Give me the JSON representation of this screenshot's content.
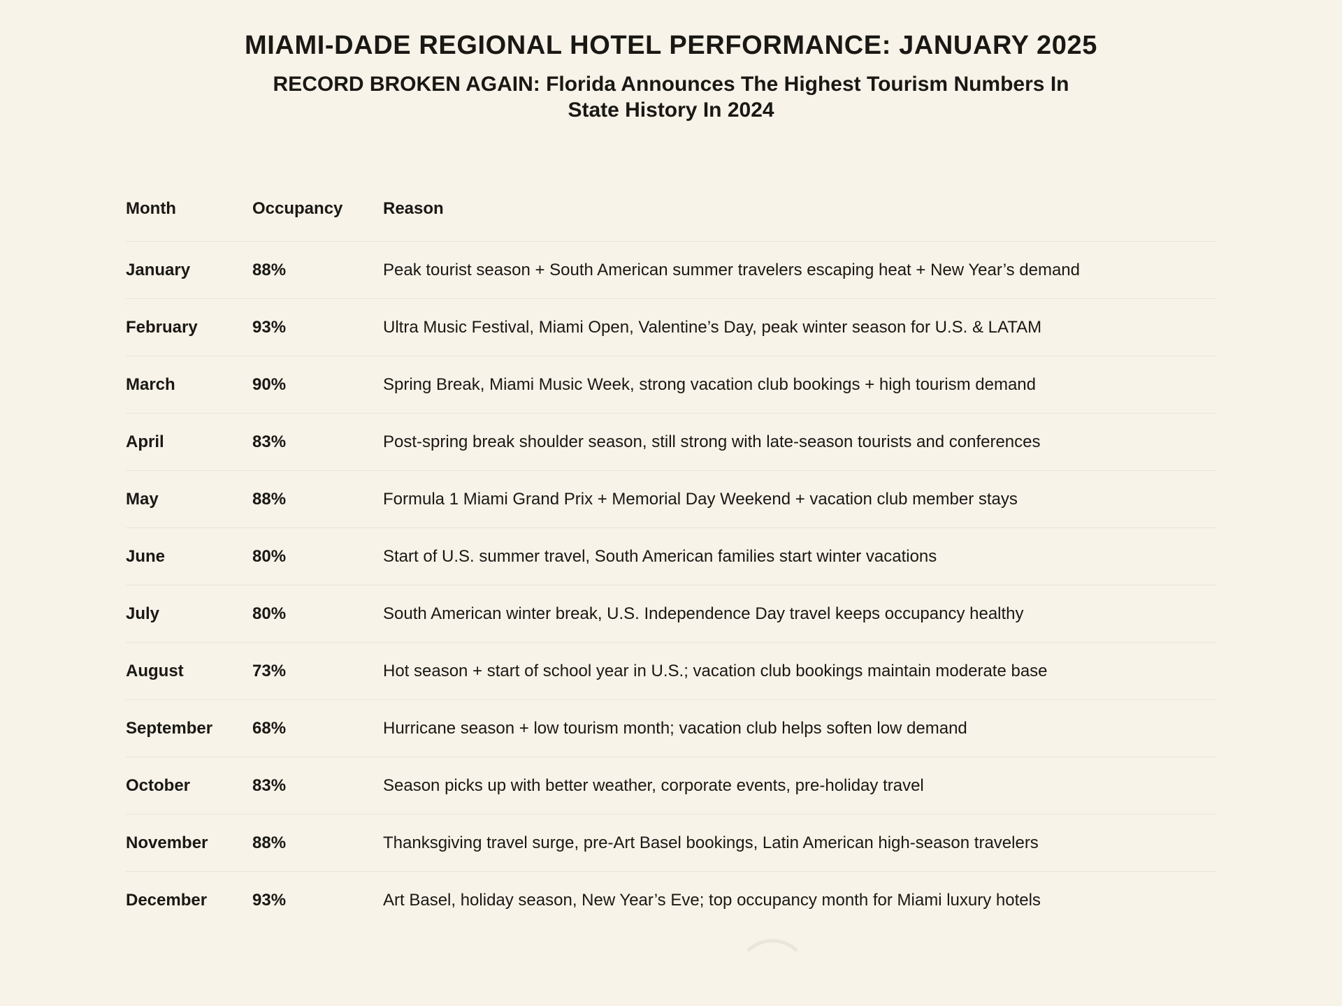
{
  "header": {
    "title": "MIAMI-DADE REGIONAL HOTEL PERFORMANCE: JANUARY 2025",
    "subtitle": "RECORD BROKEN AGAIN: Florida Announces The Highest Tourism Numbers In State History In 2024"
  },
  "table": {
    "columns": [
      "Month",
      "Occupancy",
      "Reason"
    ],
    "rows": [
      {
        "month": "January",
        "occupancy": "88%",
        "reason": "Peak tourist season + South American summer travelers escaping heat + New Year’s demand"
      },
      {
        "month": "February",
        "occupancy": "93%",
        "reason": "Ultra Music Festival, Miami Open, Valentine’s Day, peak winter season for U.S. & LATAM"
      },
      {
        "month": "March",
        "occupancy": "90%",
        "reason": "Spring Break, Miami Music Week, strong vacation club bookings + high tourism demand"
      },
      {
        "month": "April",
        "occupancy": "83%",
        "reason": "Post-spring break shoulder season, still strong with late-season tourists and conferences"
      },
      {
        "month": "May",
        "occupancy": "88%",
        "reason": "Formula 1 Miami Grand Prix + Memorial Day Weekend + vacation club member stays"
      },
      {
        "month": "June",
        "occupancy": "80%",
        "reason": "Start of U.S. summer travel, South American families start winter vacations"
      },
      {
        "month": "July",
        "occupancy": "80%",
        "reason": "South American winter break, U.S. Independence Day travel keeps occupancy healthy"
      },
      {
        "month": "August",
        "occupancy": "73%",
        "reason": "Hot season + start of school year in U.S.; vacation club bookings maintain moderate base"
      },
      {
        "month": "September",
        "occupancy": "68%",
        "reason": "Hurricane season + low tourism month; vacation club helps soften low demand"
      },
      {
        "month": "October",
        "occupancy": "83%",
        "reason": "Season picks up with better weather, corporate events, pre-holiday travel"
      },
      {
        "month": "November",
        "occupancy": "88%",
        "reason": "Thanksgiving travel surge, pre-Art Basel bookings, Latin American high-season travelers"
      },
      {
        "month": "December",
        "occupancy": "93%",
        "reason": "Art Basel, holiday season, New Year’s Eve; top occupancy month for Miami luxury hotels"
      }
    ]
  },
  "colors": {
    "background": "#f7f3e8",
    "text": "#1a1814",
    "divider": "#e8e5db"
  }
}
